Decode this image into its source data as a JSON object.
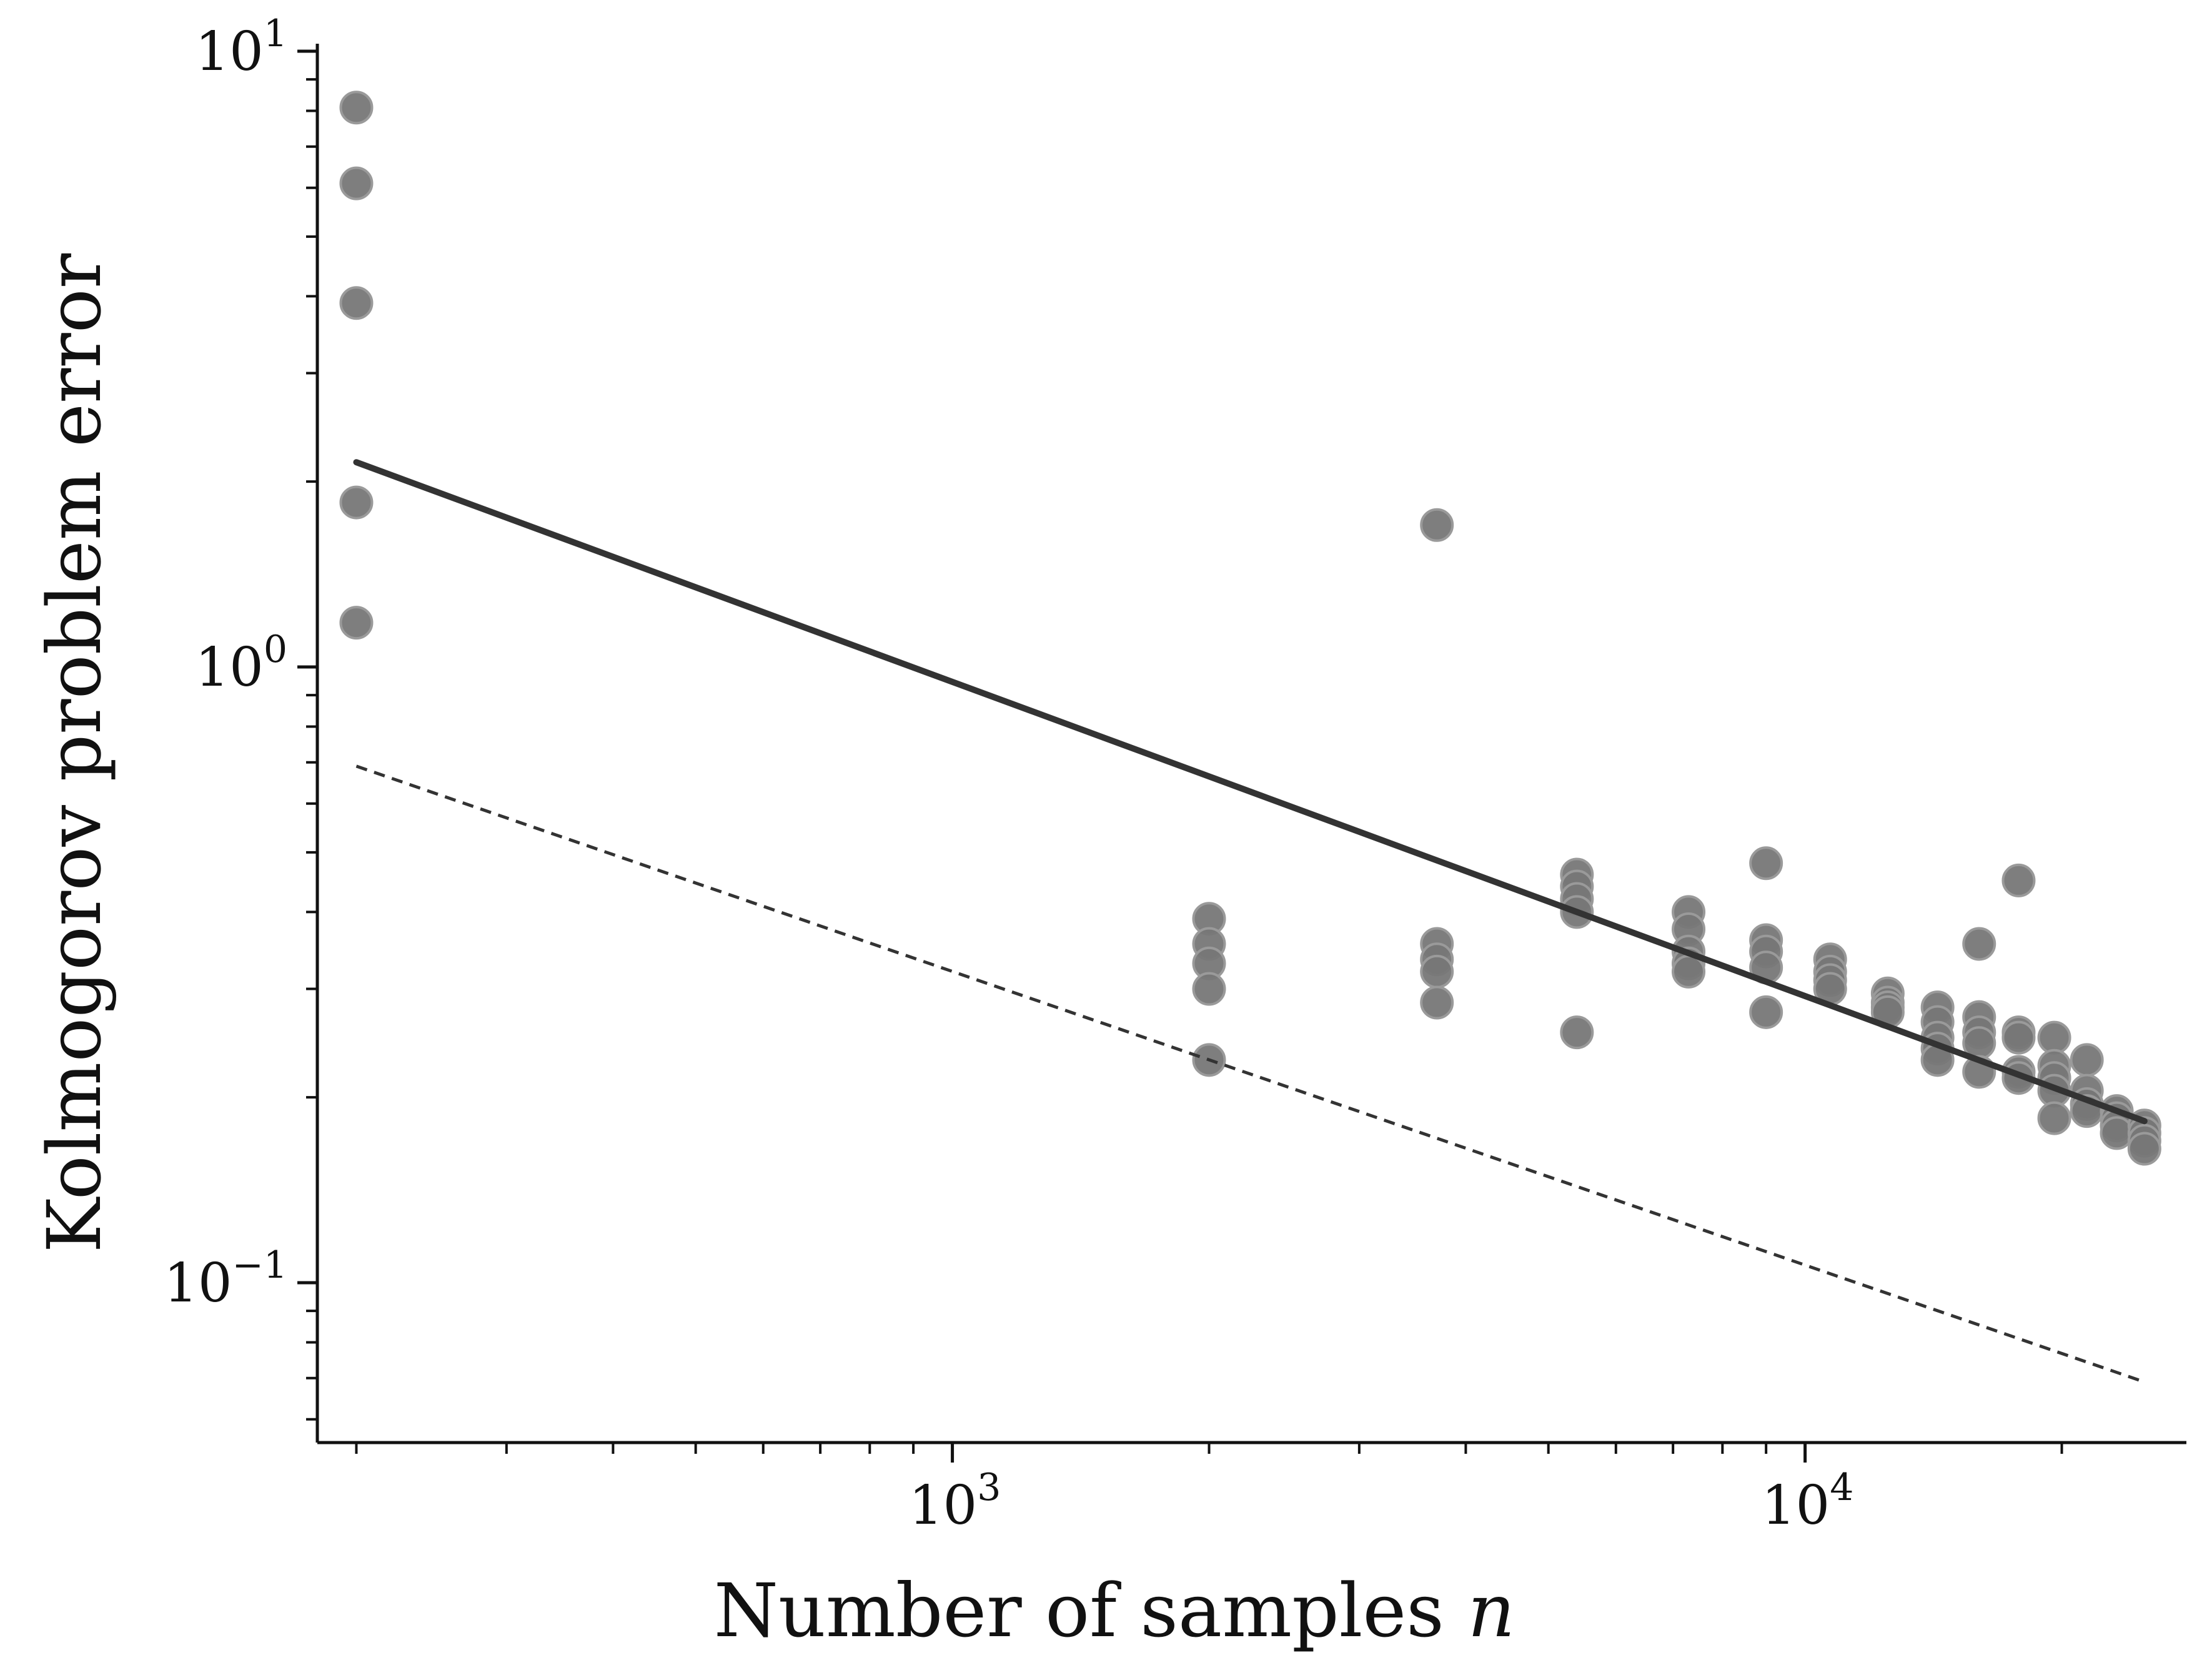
{
  "chart_data": {
    "type": "scatter",
    "xlabel": "Number of samples n",
    "xlabel_parts": {
      "text": "Number of samples ",
      "var": "n"
    },
    "ylabel": "Kolmogorov problem error",
    "xscale": "log",
    "yscale": "log",
    "xlim": [
      180,
      28000
    ],
    "ylim": [
      0.055,
      10
    ],
    "grid": false,
    "x_ticks": [
      {
        "value": 1000,
        "base": "10",
        "exp": "3"
      },
      {
        "value": 10000,
        "base": "10",
        "exp": "4"
      }
    ],
    "y_ticks": [
      {
        "value": 0.1,
        "base": "10",
        "exp": "−1"
      },
      {
        "value": 1,
        "base": "10",
        "exp": "0"
      },
      {
        "value": 10,
        "base": "10",
        "exp": "1"
      }
    ],
    "colors": {
      "points": "#777777",
      "fit_line": "#333333",
      "ref_line": "#333333",
      "axes": "#111111"
    },
    "points": [
      {
        "x": 200,
        "y": 8.1
      },
      {
        "x": 200,
        "y": 6.1
      },
      {
        "x": 200,
        "y": 3.9
      },
      {
        "x": 200,
        "y": 1.85
      },
      {
        "x": 200,
        "y": 1.18
      },
      {
        "x": 2000,
        "y": 0.39
      },
      {
        "x": 2000,
        "y": 0.355
      },
      {
        "x": 2000,
        "y": 0.33
      },
      {
        "x": 2000,
        "y": 0.3
      },
      {
        "x": 2000,
        "y": 0.23
      },
      {
        "x": 3700,
        "y": 1.7
      },
      {
        "x": 3700,
        "y": 0.355
      },
      {
        "x": 3700,
        "y": 0.335
      },
      {
        "x": 3700,
        "y": 0.32
      },
      {
        "x": 3700,
        "y": 0.285
      },
      {
        "x": 5400,
        "y": 0.46
      },
      {
        "x": 5400,
        "y": 0.44
      },
      {
        "x": 5400,
        "y": 0.42
      },
      {
        "x": 5400,
        "y": 0.4
      },
      {
        "x": 5400,
        "y": 0.255
      },
      {
        "x": 7300,
        "y": 0.4
      },
      {
        "x": 7300,
        "y": 0.375
      },
      {
        "x": 7300,
        "y": 0.345
      },
      {
        "x": 7300,
        "y": 0.33
      },
      {
        "x": 7300,
        "y": 0.32
      },
      {
        "x": 9000,
        "y": 0.48
      },
      {
        "x": 9000,
        "y": 0.36
      },
      {
        "x": 9000,
        "y": 0.345
      },
      {
        "x": 9000,
        "y": 0.325
      },
      {
        "x": 9000,
        "y": 0.275
      },
      {
        "x": 10700,
        "y": 0.335
      },
      {
        "x": 10700,
        "y": 0.32
      },
      {
        "x": 10700,
        "y": 0.31
      },
      {
        "x": 10700,
        "y": 0.3
      },
      {
        "x": 12500,
        "y": 0.295
      },
      {
        "x": 12500,
        "y": 0.285
      },
      {
        "x": 12500,
        "y": 0.28
      },
      {
        "x": 12500,
        "y": 0.275
      },
      {
        "x": 14300,
        "y": 0.28
      },
      {
        "x": 14300,
        "y": 0.265
      },
      {
        "x": 14300,
        "y": 0.25
      },
      {
        "x": 14300,
        "y": 0.24
      },
      {
        "x": 14300,
        "y": 0.23
      },
      {
        "x": 16000,
        "y": 0.355
      },
      {
        "x": 16000,
        "y": 0.27
      },
      {
        "x": 16000,
        "y": 0.255
      },
      {
        "x": 16000,
        "y": 0.245
      },
      {
        "x": 16000,
        "y": 0.22
      },
      {
        "x": 17800,
        "y": 0.45
      },
      {
        "x": 17800,
        "y": 0.255
      },
      {
        "x": 17800,
        "y": 0.25
      },
      {
        "x": 17800,
        "y": 0.22
      },
      {
        "x": 17800,
        "y": 0.215
      },
      {
        "x": 19600,
        "y": 0.25
      },
      {
        "x": 19600,
        "y": 0.225
      },
      {
        "x": 19600,
        "y": 0.215
      },
      {
        "x": 19600,
        "y": 0.205
      },
      {
        "x": 19600,
        "y": 0.185
      },
      {
        "x": 21400,
        "y": 0.23
      },
      {
        "x": 21400,
        "y": 0.205
      },
      {
        "x": 21400,
        "y": 0.195
      },
      {
        "x": 21400,
        "y": 0.19
      },
      {
        "x": 23200,
        "y": 0.19
      },
      {
        "x": 23200,
        "y": 0.185
      },
      {
        "x": 23200,
        "y": 0.18
      },
      {
        "x": 23200,
        "y": 0.175
      },
      {
        "x": 25000,
        "y": 0.18
      },
      {
        "x": 25000,
        "y": 0.175
      },
      {
        "x": 25000,
        "y": 0.17
      },
      {
        "x": 25000,
        "y": 0.165
      }
    ],
    "fit_line": {
      "style": "solid",
      "points": [
        {
          "x": 200,
          "y": 2.15
        },
        {
          "x": 25000,
          "y": 0.183
        }
      ]
    },
    "ref_line": {
      "style": "dashed",
      "points": [
        {
          "x": 200,
          "y": 0.69
        },
        {
          "x": 25000,
          "y": 0.069
        }
      ]
    }
  }
}
